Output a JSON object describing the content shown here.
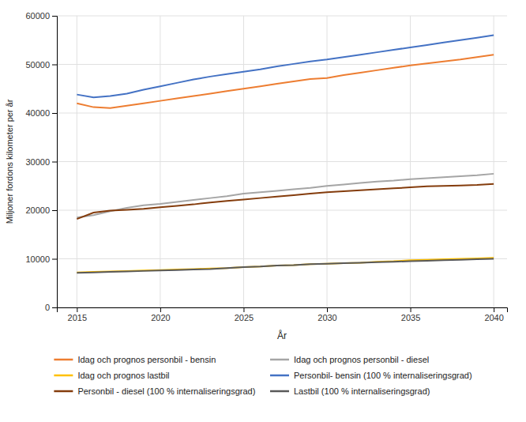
{
  "chart_data": {
    "type": "line",
    "xlabel": "År",
    "ylabel": "Miljoner fordons kilometer per år",
    "x": [
      2015,
      2016,
      2017,
      2018,
      2019,
      2020,
      2021,
      2022,
      2023,
      2024,
      2025,
      2026,
      2027,
      2028,
      2029,
      2030,
      2031,
      2032,
      2033,
      2034,
      2035,
      2036,
      2037,
      2038,
      2039,
      2040
    ],
    "xlim": [
      2013.8,
      2040.8
    ],
    "xticks": [
      2015,
      2020,
      2025,
      2030,
      2035,
      2040
    ],
    "ylim": [
      0,
      60000
    ],
    "yticks": [
      0,
      10000,
      20000,
      30000,
      40000,
      50000,
      60000
    ],
    "grid": true,
    "legend": "bottom",
    "series": [
      {
        "name": "Idag och prognos personbil - bensin",
        "color": "#ED7D31",
        "values": [
          42000,
          41200,
          41000,
          41500,
          42000,
          42500,
          43000,
          43500,
          44000,
          44500,
          45000,
          45500,
          46000,
          46500,
          47000,
          47200,
          47800,
          48300,
          48800,
          49300,
          49800,
          50200,
          50600,
          51000,
          51500,
          52000
        ]
      },
      {
        "name": "Idag och prognos personbil - diesel",
        "color": "#A5A5A5",
        "values": [
          18500,
          19000,
          19800,
          20500,
          21000,
          21300,
          21700,
          22100,
          22500,
          22900,
          23400,
          23700,
          24000,
          24300,
          24600,
          25000,
          25300,
          25600,
          25900,
          26100,
          26400,
          26600,
          26800,
          27000,
          27200,
          27500
        ]
      },
      {
        "name": "Idag och prognos lastbil",
        "color": "#FFC000",
        "values": [
          7200,
          7300,
          7400,
          7500,
          7600,
          7700,
          7800,
          7900,
          8000,
          8100,
          8300,
          8400,
          8600,
          8700,
          8900,
          9000,
          9100,
          9200,
          9400,
          9500,
          9700,
          9800,
          9900,
          10000,
          10100,
          10200
        ]
      },
      {
        "name": "Personbil- bensin (100 % internaliseringsgrad)",
        "color": "#4472C4",
        "values": [
          43800,
          43200,
          43500,
          44000,
          44800,
          45500,
          46200,
          46900,
          47500,
          48000,
          48500,
          49000,
          49600,
          50100,
          50600,
          51000,
          51500,
          52000,
          52500,
          53000,
          53500,
          54000,
          54500,
          55000,
          55500,
          56000
        ]
      },
      {
        "name": "Personbil - diesel (100 % internaliseringsgrad)",
        "color": "#843C0C",
        "values": [
          18200,
          19500,
          19900,
          20100,
          20300,
          20600,
          20900,
          21200,
          21600,
          21900,
          22200,
          22500,
          22800,
          23100,
          23400,
          23700,
          23900,
          24100,
          24300,
          24500,
          24700,
          24900,
          25000,
          25100,
          25200,
          25400
        ]
      },
      {
        "name": "Lastbil (100 % internaliseringsgrad)",
        "color": "#595959",
        "values": [
          7100,
          7200,
          7300,
          7400,
          7500,
          7600,
          7700,
          7800,
          7900,
          8100,
          8300,
          8400,
          8600,
          8700,
          8900,
          9000,
          9100,
          9200,
          9300,
          9400,
          9500,
          9600,
          9700,
          9800,
          9900,
          10000
        ]
      }
    ]
  }
}
